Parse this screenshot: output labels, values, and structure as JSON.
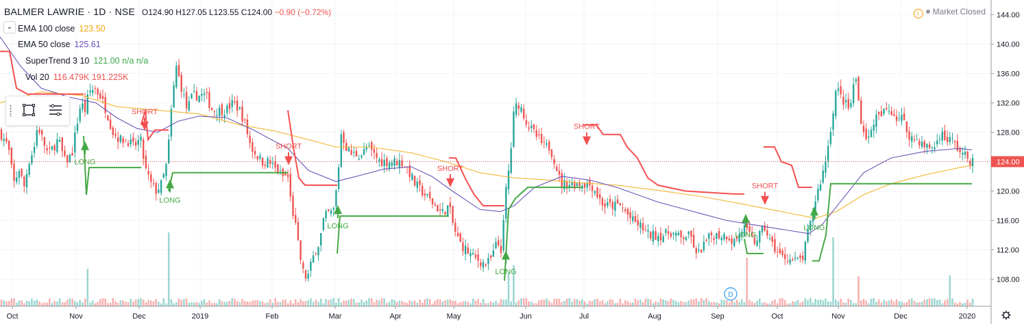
{
  "header": {
    "symbol": "BALMER LAWRIE · 1D · NSE",
    "open": "O124.90",
    "high": "H127.05",
    "low": "L123.55",
    "close": "C124.00",
    "change": "−0.90 (−0.72%)"
  },
  "indicators": [
    {
      "name": "EMA 100 close",
      "value": "123.50",
      "color": "#f0a30a"
    },
    {
      "name": "EMA 50 close",
      "value": "125.61",
      "color": "#6b4fbb"
    },
    {
      "name": "SuperTrend 3 10",
      "value": "121.00  n/a  n/a",
      "color": "#3da84a"
    },
    {
      "name": "Vol 20",
      "value": "116.479K  191.225K",
      "color": "#ef5350"
    }
  ],
  "status": {
    "market": "Market Closed"
  },
  "colors": {
    "up": "#26a69a",
    "down": "#ef5350",
    "st_up": "#43a843",
    "st_down": "#f44f4f",
    "ema100": "#f2b632",
    "ema50": "#6a55b5",
    "price_line": "#ef5350"
  },
  "chart_data": {
    "type": "candlestick",
    "symbol": "BALMER LAWRIE",
    "interval": "1D",
    "exchange": "NSE",
    "ylim": [
      104.5,
      145
    ],
    "y_ticks": [
      "108.00",
      "112.00",
      "116.00",
      "120.00",
      "124.00",
      "128.00",
      "132.00",
      "136.00",
      "140.00",
      "144.00"
    ],
    "x_ticks": [
      "Oct",
      "Nov",
      "Dec",
      "2019",
      "Feb",
      "Mar",
      "Apr",
      "May",
      "Jun",
      "Jul",
      "Aug",
      "Sep",
      "Oct",
      "Nov",
      "Dec",
      "2020"
    ],
    "last_price": "124.00",
    "grid": true,
    "close_path": [
      [
        0,
        128
      ],
      [
        12,
        126
      ],
      [
        20,
        121
      ],
      [
        28,
        123
      ],
      [
        35,
        120.5
      ],
      [
        42,
        124
      ],
      [
        50,
        126
      ],
      [
        55,
        129
      ],
      [
        62,
        127
      ],
      [
        70,
        125
      ],
      [
        78,
        126
      ],
      [
        85,
        127
      ],
      [
        95,
        124
      ],
      [
        105,
        125
      ],
      [
        112,
        129
      ],
      [
        118,
        132
      ],
      [
        124,
        131
      ],
      [
        130,
        133.5
      ],
      [
        138,
        134
      ],
      [
        146,
        133
      ],
      [
        155,
        131
      ],
      [
        165,
        128
      ],
      [
        175,
        127
      ],
      [
        185,
        127
      ],
      [
        195,
        126
      ],
      [
        205,
        127
      ],
      [
        212,
        123
      ],
      [
        220,
        121
      ],
      [
        228,
        120
      ],
      [
        236,
        121
      ],
      [
        244,
        124
      ],
      [
        250,
        131
      ],
      [
        257,
        137
      ],
      [
        265,
        134
      ],
      [
        273,
        131
      ],
      [
        281,
        133
      ],
      [
        290,
        133
      ],
      [
        300,
        133
      ],
      [
        310,
        131
      ],
      [
        320,
        131
      ],
      [
        330,
        131
      ],
      [
        340,
        132
      ],
      [
        350,
        131
      ],
      [
        358,
        129
      ],
      [
        366,
        126
      ],
      [
        374,
        125
      ],
      [
        382,
        124
      ],
      [
        392,
        124
      ],
      [
        402,
        123
      ],
      [
        412,
        122
      ],
      [
        420,
        122
      ],
      [
        425,
        118
      ],
      [
        430,
        116
      ],
      [
        436,
        112
      ],
      [
        442,
        109
      ],
      [
        448,
        108
      ],
      [
        454,
        110
      ],
      [
        460,
        112
      ],
      [
        466,
        113
      ],
      [
        472,
        116
      ],
      [
        478,
        117
      ],
      [
        486,
        117
      ],
      [
        492,
        121
      ],
      [
        498,
        128
      ],
      [
        505,
        126
      ],
      [
        512,
        125
      ],
      [
        520,
        125
      ],
      [
        528,
        125
      ],
      [
        536,
        126
      ],
      [
        545,
        125
      ],
      [
        555,
        124
      ],
      [
        565,
        124
      ],
      [
        575,
        124
      ],
      [
        585,
        124
      ],
      [
        595,
        123
      ],
      [
        605,
        121
      ],
      [
        615,
        120
      ],
      [
        625,
        119
      ],
      [
        635,
        118
      ],
      [
        645,
        117
      ],
      [
        655,
        118
      ],
      [
        662,
        115
      ],
      [
        670,
        113
      ],
      [
        680,
        112
      ],
      [
        690,
        111
      ],
      [
        700,
        110.5
      ],
      [
        710,
        110
      ],
      [
        718,
        111
      ],
      [
        725,
        113
      ],
      [
        732,
        112
      ],
      [
        738,
        120
      ],
      [
        744,
        124
      ],
      [
        750,
        131
      ],
      [
        756,
        132
      ],
      [
        762,
        131
      ],
      [
        770,
        129
      ],
      [
        778,
        128
      ],
      [
        786,
        127
      ],
      [
        794,
        126
      ],
      [
        802,
        126
      ],
      [
        810,
        124
      ],
      [
        818,
        121
      ],
      [
        826,
        121
      ],
      [
        834,
        121
      ],
      [
        842,
        121
      ],
      [
        850,
        121
      ],
      [
        858,
        121
      ],
      [
        866,
        120.5
      ],
      [
        874,
        119
      ],
      [
        882,
        118
      ],
      [
        890,
        118
      ],
      [
        898,
        118
      ],
      [
        906,
        118
      ],
      [
        914,
        117
      ],
      [
        922,
        116
      ],
      [
        930,
        115.5
      ],
      [
        938,
        115
      ],
      [
        946,
        114
      ],
      [
        954,
        114
      ],
      [
        962,
        114
      ],
      [
        970,
        114
      ],
      [
        978,
        114.5
      ],
      [
        986,
        114
      ],
      [
        994,
        113.5
      ],
      [
        1002,
        114
      ],
      [
        1010,
        113.5
      ],
      [
        1016,
        111
      ],
      [
        1022,
        112
      ],
      [
        1030,
        113
      ],
      [
        1038,
        114
      ],
      [
        1046,
        114
      ],
      [
        1054,
        114
      ],
      [
        1062,
        114
      ],
      [
        1070,
        113
      ],
      [
        1078,
        114
      ],
      [
        1086,
        115
      ],
      [
        1092,
        114
      ],
      [
        1100,
        113
      ],
      [
        1108,
        114
      ],
      [
        1116,
        115
      ],
      [
        1124,
        113
      ],
      [
        1132,
        112
      ],
      [
        1140,
        111
      ],
      [
        1148,
        111
      ],
      [
        1156,
        110.5
      ],
      [
        1164,
        110.5
      ],
      [
        1172,
        111
      ],
      [
        1178,
        114
      ],
      [
        1184,
        116
      ],
      [
        1190,
        119
      ],
      [
        1196,
        121
      ],
      [
        1202,
        123
      ],
      [
        1208,
        126
      ],
      [
        1214,
        130
      ],
      [
        1220,
        134
      ],
      [
        1226,
        133
      ],
      [
        1232,
        132
      ],
      [
        1240,
        131
      ],
      [
        1248,
        136
      ],
      [
        1254,
        131
      ],
      [
        1260,
        128
      ],
      [
        1268,
        127
      ],
      [
        1276,
        130
      ],
      [
        1284,
        130
      ],
      [
        1292,
        131
      ],
      [
        1300,
        131
      ],
      [
        1308,
        130
      ],
      [
        1316,
        130
      ],
      [
        1324,
        128
      ],
      [
        1332,
        127
      ],
      [
        1340,
        127
      ],
      [
        1348,
        126
      ],
      [
        1356,
        126
      ],
      [
        1364,
        126
      ],
      [
        1372,
        128
      ],
      [
        1380,
        127
      ],
      [
        1388,
        127
      ],
      [
        1396,
        126
      ],
      [
        1404,
        125
      ],
      [
        1412,
        124.5
      ],
      [
        1418,
        124
      ]
    ],
    "ema100_path": [
      [
        0,
        132
      ],
      [
        60,
        133.5
      ],
      [
        120,
        133
      ],
      [
        170,
        131.5
      ],
      [
        230,
        131
      ],
      [
        290,
        130.5
      ],
      [
        350,
        129
      ],
      [
        400,
        128.2
      ],
      [
        450,
        127
      ],
      [
        490,
        126
      ],
      [
        540,
        126
      ],
      [
        600,
        125.2
      ],
      [
        650,
        124
      ],
      [
        700,
        122.5
      ],
      [
        750,
        121.8
      ],
      [
        800,
        121.5
      ],
      [
        850,
        121.1
      ],
      [
        900,
        120.8
      ],
      [
        960,
        120.1
      ],
      [
        1020,
        119.3
      ],
      [
        1080,
        118.3
      ],
      [
        1140,
        117.2
      ],
      [
        1190,
        116.3
      ],
      [
        1220,
        117.2
      ],
      [
        1260,
        119.5
      ],
      [
        1300,
        121
      ],
      [
        1350,
        122.2
      ],
      [
        1400,
        123.2
      ],
      [
        1418,
        123.5
      ]
    ],
    "ema50_path": [
      [
        0,
        141
      ],
      [
        30,
        137
      ],
      [
        60,
        134
      ],
      [
        100,
        132.8
      ],
      [
        140,
        132
      ],
      [
        170,
        130
      ],
      [
        200,
        128.5
      ],
      [
        230,
        128
      ],
      [
        260,
        129.5
      ],
      [
        290,
        130.2
      ],
      [
        330,
        130
      ],
      [
        370,
        128.3
      ],
      [
        420,
        125.8
      ],
      [
        450,
        122.8
      ],
      [
        490,
        121.3
      ],
      [
        520,
        122
      ],
      [
        560,
        123
      ],
      [
        600,
        123.3
      ],
      [
        630,
        122
      ],
      [
        660,
        120
      ],
      [
        700,
        117.5
      ],
      [
        730,
        117.2
      ],
      [
        750,
        118
      ],
      [
        780,
        120.5
      ],
      [
        820,
        122
      ],
      [
        860,
        121.5
      ],
      [
        900,
        120.5
      ],
      [
        960,
        118.5
      ],
      [
        1020,
        117
      ],
      [
        1060,
        116
      ],
      [
        1100,
        115.4
      ],
      [
        1140,
        114.8
      ],
      [
        1180,
        114.2
      ],
      [
        1200,
        115.5
      ],
      [
        1230,
        119
      ],
      [
        1260,
        122.5
      ],
      [
        1300,
        124.5
      ],
      [
        1350,
        125.4
      ],
      [
        1400,
        125.8
      ],
      [
        1418,
        125.6
      ]
    ],
    "supertrend": [
      {
        "dir": "down",
        "points": [
          [
            0,
            139
          ],
          [
            14,
            139
          ],
          [
            24,
            134
          ],
          [
            40,
            133.2
          ],
          [
            100,
            133.2
          ],
          [
            122,
            133.2
          ]
        ]
      },
      {
        "dir": "up",
        "points": [
          [
            122,
            127.5
          ],
          [
            126,
            119.5
          ],
          [
            130,
            123.2
          ],
          [
            150,
            123.2
          ],
          [
            206,
            123.2
          ]
        ]
      },
      {
        "dir": "down",
        "points": [
          [
            206,
            129
          ],
          [
            212,
            131
          ],
          [
            216,
            127
          ],
          [
            226,
            128.3
          ],
          [
            246,
            128.3
          ]
        ]
      },
      {
        "dir": "up",
        "points": [
          [
            246,
            120
          ],
          [
            252,
            122.5
          ],
          [
            268,
            122.5
          ],
          [
            410,
            122.5
          ],
          [
            420,
            122.5
          ]
        ]
      },
      {
        "dir": "down",
        "points": [
          [
            420,
            131
          ],
          [
            428,
            126
          ],
          [
            436,
            121.8
          ],
          [
            445,
            120.8
          ],
          [
            492,
            120.8
          ]
        ]
      },
      {
        "dir": "up",
        "points": [
          [
            492,
            111.5
          ],
          [
            496,
            116.6
          ],
          [
            520,
            116.6
          ],
          [
            655,
            116.6
          ]
        ]
      },
      {
        "dir": "down",
        "points": [
          [
            655,
            124.5
          ],
          [
            665,
            124.5
          ],
          [
            680,
            121.5
          ],
          [
            692,
            119.5
          ],
          [
            705,
            118
          ],
          [
            736,
            118
          ]
        ]
      },
      {
        "dir": "up",
        "points": [
          [
            736,
            107.8
          ],
          [
            742,
            117.5
          ],
          [
            752,
            119
          ],
          [
            770,
            120.5
          ],
          [
            850,
            120.5
          ]
        ]
      },
      {
        "dir": "down",
        "points": [
          [
            850,
            129
          ],
          [
            870,
            129
          ],
          [
            880,
            127.7
          ],
          [
            905,
            127.7
          ],
          [
            915,
            126
          ],
          [
            930,
            124.5
          ],
          [
            945,
            121.8
          ],
          [
            960,
            120.8
          ],
          [
            1000,
            120
          ],
          [
            1070,
            119.6
          ],
          [
            1086,
            119.6
          ]
        ]
      },
      {
        "dir": "up",
        "points": [
          [
            1086,
            113.5
          ],
          [
            1090,
            111.5
          ],
          [
            1114,
            111.5
          ]
        ]
      },
      {
        "dir": "down",
        "points": [
          [
            1114,
            126
          ],
          [
            1130,
            126
          ],
          [
            1140,
            124
          ],
          [
            1155,
            123.5
          ],
          [
            1165,
            120.5
          ],
          [
            1185,
            120.5
          ]
        ]
      },
      {
        "dir": "up",
        "points": [
          [
            1185,
            110.5
          ],
          [
            1195,
            110.5
          ],
          [
            1205,
            114
          ],
          [
            1212,
            121
          ],
          [
            1250,
            121
          ],
          [
            1418,
            121
          ]
        ]
      }
    ],
    "signals": [
      {
        "type": "long",
        "label": "LONG",
        "x": 124,
        "price": 126.5
      },
      {
        "type": "short",
        "label": "SHORT",
        "x": 211,
        "price": 128.5
      },
      {
        "type": "long",
        "label": "LONG",
        "x": 248,
        "price": 121.3
      },
      {
        "type": "short",
        "label": "SHORT",
        "x": 421,
        "price": 123.8
      },
      {
        "type": "long",
        "label": "LONG",
        "x": 493,
        "price": 117.8
      },
      {
        "type": "short",
        "label": "SHORT",
        "x": 657,
        "price": 120.8
      },
      {
        "type": "long",
        "label": "LONG",
        "x": 738,
        "price": 111.6
      },
      {
        "type": "short",
        "label": "SHORT",
        "x": 856,
        "price": 126.5
      },
      {
        "type": "long",
        "label": "LONG",
        "x": 1088,
        "price": 116.6
      },
      {
        "type": "short",
        "label": "SHORT",
        "x": 1116,
        "price": 118.4
      },
      {
        "type": "long",
        "label": "LONG",
        "x": 1188,
        "price": 117.6
      }
    ],
    "volume_spikes": [
      [
        124,
        0.42
      ],
      [
        246,
        1.0
      ],
      [
        740,
        0.35
      ],
      [
        748,
        0.48
      ],
      [
        1086,
        0.6
      ],
      [
        1212,
        0.92
      ],
      [
        1252,
        0.3
      ],
      [
        1384,
        0.32
      ]
    ],
    "event_marker": {
      "label": "D",
      "x": 1066
    }
  }
}
